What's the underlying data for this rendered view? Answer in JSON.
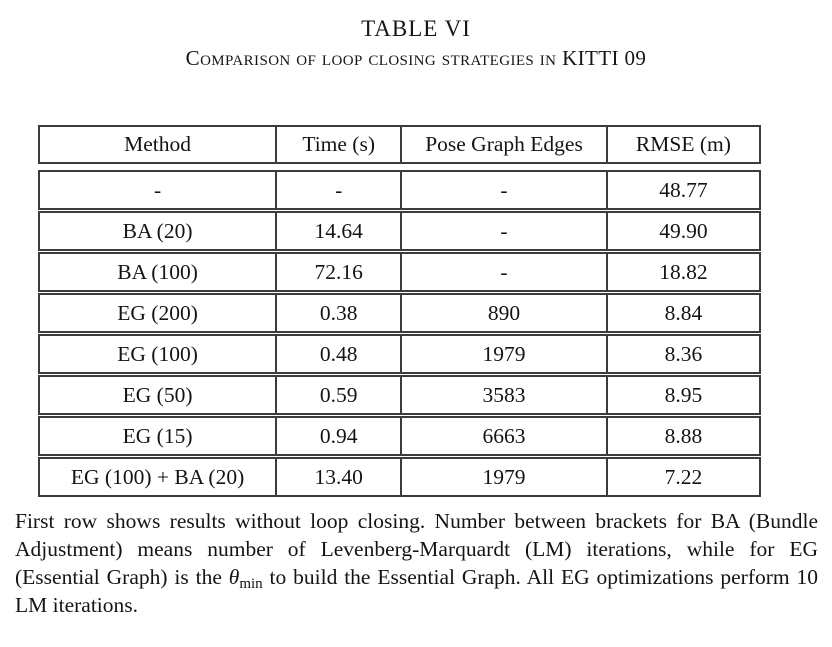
{
  "title": "TABLE VI",
  "subtitle": "Comparison of loop closing strategies in KITTI 09",
  "colors": {
    "background": "#ffffff",
    "text": "#141414",
    "table_border": "#3c3c3c"
  },
  "table": {
    "headers": [
      "Method",
      "Time (s)",
      "Pose Graph Edges",
      "RMSE (m)"
    ],
    "rows": [
      [
        "-",
        "-",
        "-",
        "48.77"
      ],
      [
        "BA (20)",
        "14.64",
        "-",
        "49.90"
      ],
      [
        "BA (100)",
        "72.16",
        "-",
        "18.82"
      ],
      [
        "EG (200)",
        "0.38",
        "890",
        "8.84"
      ],
      [
        "EG (100)",
        "0.48",
        "1979",
        "8.36"
      ],
      [
        "EG (50)",
        "0.59",
        "3583",
        "8.95"
      ],
      [
        "EG (15)",
        "0.94",
        "6663",
        "8.88"
      ],
      [
        "EG (100) + BA (20)",
        "13.40",
        "1979",
        "7.22"
      ]
    ]
  },
  "caption": {
    "part1": "First row shows results without loop closing. Number between brackets for BA (Bundle Adjustment) means number of Levenberg-Marquardt (LM) iterations, while for EG (Essential Graph) is the ",
    "theta": "θ",
    "theta_sub": "min",
    "part2": " to build the Essential Graph. All EG optimizations perform 10 LM iterations."
  }
}
